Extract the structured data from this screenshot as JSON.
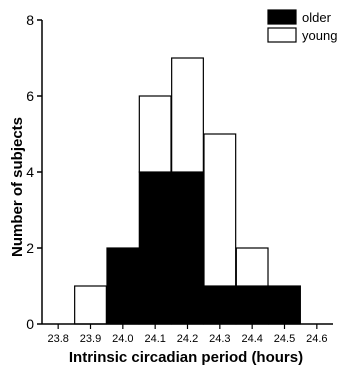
{
  "chart_data": {
    "type": "bar",
    "stacked": true,
    "categories": [
      "23.8",
      "23.9",
      "24.0",
      "24.1",
      "24.2",
      "24.3",
      "24.4",
      "24.5",
      "24.6"
    ],
    "series": [
      {
        "name": "older",
        "color": "#000000",
        "values": [
          0,
          0,
          2,
          4,
          4,
          1,
          1,
          1,
          0
        ]
      },
      {
        "name": "young",
        "color": "#ffffff",
        "values": [
          0,
          1,
          0,
          2,
          3,
          4,
          1,
          0,
          0
        ]
      }
    ],
    "xlabel": "Intrinsic circadian period (hours)",
    "ylabel": "Number of subjects",
    "ylim": [
      0,
      8
    ],
    "yticks": [
      "0",
      "2",
      "4",
      "6",
      "8"
    ],
    "legend_position": "top-right",
    "grid": false
  }
}
